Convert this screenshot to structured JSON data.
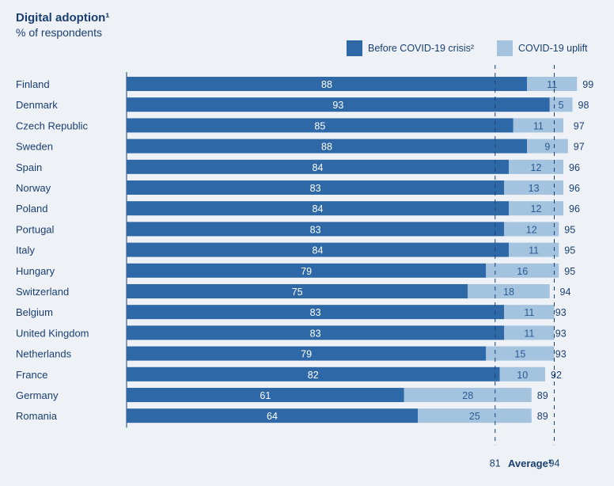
{
  "chart_data": {
    "type": "bar",
    "orientation": "horizontal",
    "stacked": true,
    "title": "Digital adoption¹",
    "subtitle": "% of respondents",
    "categories": [
      "Finland",
      "Denmark",
      "Czech Republic",
      "Sweden",
      "Spain",
      "Norway",
      "Poland",
      "Portugal",
      "Italy",
      "Hungary",
      "Switzerland",
      "Belgium",
      "United Kingdom",
      "Netherlands",
      "France",
      "Germany",
      "Romania"
    ],
    "series": [
      {
        "name": "Before COVID-19 crisis²",
        "color": "#2e68a6",
        "values": [
          88,
          93,
          85,
          88,
          84,
          83,
          84,
          83,
          84,
          79,
          75,
          83,
          83,
          79,
          82,
          61,
          64
        ]
      },
      {
        "name": "COVID-19 uplift",
        "color": "#a3c3df",
        "values": [
          11,
          5,
          11,
          9,
          12,
          13,
          12,
          12,
          11,
          16,
          18,
          11,
          11,
          15,
          10,
          28,
          25
        ]
      }
    ],
    "totals": [
      99,
      98,
      97,
      97,
      96,
      96,
      96,
      95,
      95,
      95,
      94,
      93,
      93,
      93,
      92,
      89,
      89
    ],
    "reference_lines": [
      {
        "value": 81
      },
      {
        "value": 94
      }
    ],
    "reference_title": "Average³",
    "legend_position": "top-right",
    "grid": false
  }
}
